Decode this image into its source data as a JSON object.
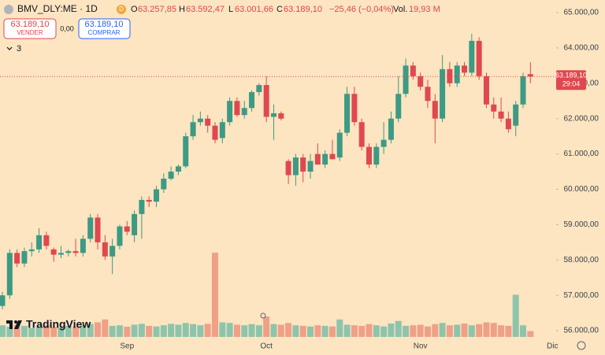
{
  "header": {
    "symbol": "BMV_DLY:ME · 1D",
    "badge": "D",
    "items": [
      {
        "key": "O",
        "value": "63.257,85"
      },
      {
        "key": "H",
        "value": "63.592,47"
      },
      {
        "key": "L",
        "value": "63.001,66"
      },
      {
        "key": "C",
        "value": "63.189,10"
      }
    ],
    "change": "−25,46 (−0,04%)",
    "vol_key": "Vol.",
    "vol_value": "19,93 M"
  },
  "trade": {
    "sell_price": "63.189,10",
    "sell": "VENDER",
    "spread": "0,00",
    "buy_price": "63.189,10",
    "buy": "COMPRAR",
    "indicators": "3"
  },
  "brand": "TradingView",
  "chart_data": {
    "type": "candlestick",
    "categories": [
      null,
      null,
      null,
      null,
      null,
      null,
      null,
      null,
      null,
      null,
      null,
      null,
      null,
      null,
      null,
      null,
      null,
      "Sep",
      null,
      null,
      null,
      null,
      null,
      null,
      null,
      null,
      null,
      null,
      null,
      null,
      null,
      null,
      null,
      null,
      null,
      null,
      "Oct",
      null,
      null,
      null,
      null,
      null,
      null,
      null,
      null,
      null,
      null,
      null,
      null,
      null,
      null,
      null,
      null,
      null,
      null,
      null,
      null,
      "Nov",
      null,
      null,
      null,
      null,
      null,
      null,
      null,
      null,
      null,
      null,
      null,
      null,
      null,
      null,
      null,
      null,
      null,
      "Dic"
    ],
    "open": [
      56700,
      57000,
      58200,
      57900,
      58250,
      58300,
      58700,
      58300,
      58150,
      58200,
      58250,
      58200,
      58600,
      59200,
      58500,
      58100,
      58400,
      58950,
      58700,
      59300,
      59700,
      59650,
      60000,
      60300,
      60500,
      60650,
      61500,
      61900,
      62000,
      61800,
      61450,
      61900,
      62500,
      62100,
      62300,
      62750,
      62950,
      62050,
      62150,
      60800,
      60400,
      60900,
      60500,
      61000,
      60700,
      61000,
      60900,
      61600,
      62700,
      61900,
      61200,
      60700,
      61200,
      61400,
      62000,
      62700,
      63500,
      63200,
      62900,
      62500,
      62000,
      63400,
      63000,
      63500,
      63300,
      64200,
      63200,
      62400,
      62200,
      62000,
      61800,
      62400,
      63257.85,
      null,
      null,
      null
    ],
    "high": [
      57100,
      58300,
      58300,
      58350,
      58500,
      58900,
      58800,
      58350,
      58400,
      58300,
      58600,
      58700,
      59300,
      59300,
      58700,
      58600,
      59000,
      59100,
      59400,
      59800,
      59800,
      60100,
      60450,
      60650,
      60700,
      61600,
      62100,
      62200,
      62100,
      61900,
      62000,
      62600,
      62600,
      62500,
      62800,
      63000,
      63200,
      62400,
      62200,
      60850,
      61000,
      61000,
      61000,
      61300,
      61100,
      61400,
      61700,
      62900,
      62900,
      62000,
      61300,
      61300,
      61900,
      62200,
      63200,
      63700,
      63600,
      63300,
      63100,
      62700,
      63800,
      63600,
      63600,
      63600,
      64400,
      64300,
      63300,
      62600,
      62600,
      62200,
      62500,
      63300,
      63592.47,
      null,
      null,
      null
    ],
    "low": [
      56600,
      56900,
      57800,
      57800,
      58100,
      58200,
      58300,
      57950,
      58050,
      58100,
      58100,
      58100,
      58500,
      58300,
      58000,
      57600,
      58300,
      58700,
      58500,
      58600,
      59500,
      59500,
      59900,
      60250,
      60400,
      60600,
      61400,
      61800,
      61600,
      61300,
      61300,
      61800,
      62050,
      62000,
      62200,
      62650,
      61900,
      61400,
      61950,
      60150,
      60100,
      60200,
      60300,
      60700,
      60600,
      60850,
      60800,
      61500,
      61800,
      61100,
      60600,
      60600,
      61000,
      61300,
      61900,
      62600,
      63100,
      62800,
      62300,
      61300,
      61900,
      62900,
      62900,
      63200,
      63200,
      63100,
      62300,
      62000,
      61900,
      61600,
      61500,
      62300,
      63001.66,
      null,
      null,
      null
    ],
    "close": [
      57000,
      58200,
      57900,
      58250,
      58300,
      58700,
      58400,
      58150,
      58200,
      58250,
      58200,
      58600,
      59200,
      58500,
      58100,
      58400,
      58950,
      58800,
      59300,
      59700,
      59650,
      60000,
      60300,
      60500,
      60650,
      61500,
      61900,
      62000,
      61800,
      61400,
      61900,
      62500,
      62100,
      62300,
      62750,
      62950,
      62050,
      62150,
      62000,
      60400,
      60900,
      60500,
      60800,
      60700,
      61000,
      60850,
      61600,
      62700,
      61900,
      61200,
      60700,
      61200,
      61400,
      62000,
      62700,
      63500,
      63200,
      62900,
      62500,
      62000,
      63400,
      63000,
      63500,
      63300,
      64200,
      63200,
      62400,
      62200,
      62000,
      61700,
      62400,
      63200,
      63189.1,
      null,
      null,
      null
    ],
    "volume": [
      40,
      35,
      42,
      38,
      30,
      36,
      40,
      34,
      32,
      38,
      36,
      40,
      45,
      50,
      60,
      38,
      40,
      35,
      42,
      45,
      38,
      36,
      40,
      45,
      42,
      48,
      44,
      40,
      45,
      290,
      50,
      48,
      42,
      40,
      44,
      40,
      70,
      44,
      42,
      48,
      40,
      38,
      36,
      40,
      38,
      36,
      60,
      42,
      40,
      38,
      44,
      40,
      36,
      46,
      55,
      38,
      40,
      42,
      36,
      44,
      48,
      40,
      42,
      46,
      40,
      44,
      50,
      48,
      40,
      38,
      145,
      40,
      19.93,
      null,
      null,
      null
    ],
    "up_color": "#3d9a84",
    "down_color": "#e0484f",
    "up_volume_color": "#8ec4ac",
    "down_volume_color": "#efa087",
    "vlim": [
      0,
      1160
    ],
    "ylim": [
      55824,
      65356
    ],
    "yticks": [
      {
        "value": 65000,
        "label": "65.000,00"
      },
      {
        "value": 64000,
        "label": "64.000,00"
      },
      {
        "value": 63000,
        "label": "63.000,00"
      },
      {
        "value": 62000,
        "label": "62.000,00"
      },
      {
        "value": 61000,
        "label": "61.000,00"
      },
      {
        "value": 60000,
        "label": "60.000,00"
      },
      {
        "value": 59000,
        "label": "59.000,00"
      },
      {
        "value": 58000,
        "label": "58.000,00"
      },
      {
        "value": 57000,
        "label": "57.000,00"
      },
      {
        "value": 56000,
        "label": "56.000,00"
      }
    ],
    "last_price_label": "63.189,10",
    "countdown": "29:04"
  }
}
